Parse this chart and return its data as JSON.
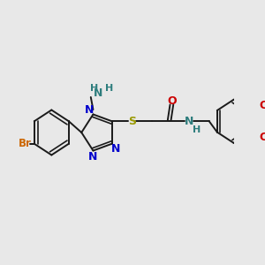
{
  "background_color": "#e8e8e8",
  "bond_color": "#1a1a1a",
  "figsize": [
    3.0,
    3.0
  ],
  "dpi": 100,
  "lw": 1.4,
  "xlim": [
    0.0,
    10.0
  ],
  "ylim": [
    0.0,
    10.0
  ],
  "br_color": "#cc6600",
  "n_color": "#0000cc",
  "nh_color": "#2e7d7d",
  "s_color": "#999900",
  "o_color": "#cc0000",
  "font_size": 8.5
}
